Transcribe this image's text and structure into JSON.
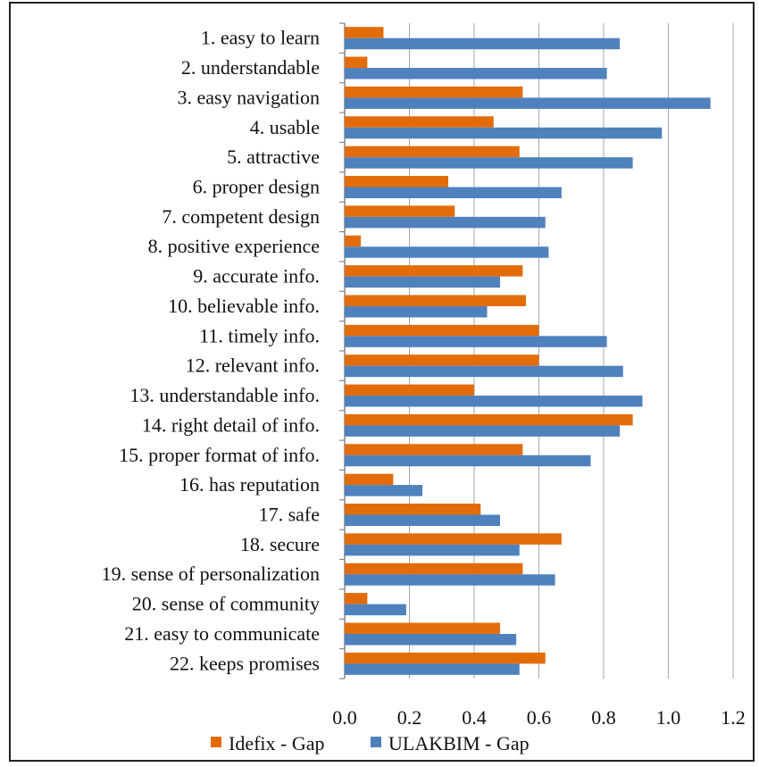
{
  "chart_data": {
    "type": "bar",
    "orientation": "horizontal",
    "categories": [
      "1. easy to learn",
      "2. understandable",
      "3. easy navigation",
      "4. usable",
      "5. attractive",
      "6. proper design",
      "7. competent design",
      "8. positive experience",
      "9. accurate info.",
      "10. believable info.",
      "11. timely info.",
      "12. relevant info.",
      "13. understandable info.",
      "14. right detail of info.",
      "15. proper format of info.",
      "16. has reputation",
      "17. safe",
      "18. secure",
      "19. sense of personalization",
      "20. sense of community",
      "21. easy to communicate",
      "22. keeps promises"
    ],
    "series": [
      {
        "name": "Idefix - Gap",
        "color": "#E36C0A",
        "values": [
          0.12,
          0.07,
          0.55,
          0.46,
          0.54,
          0.32,
          0.34,
          0.05,
          0.55,
          0.56,
          0.6,
          0.6,
          0.4,
          0.89,
          0.55,
          0.15,
          0.42,
          0.67,
          0.55,
          0.07,
          0.48,
          0.62
        ]
      },
      {
        "name": "ULAKBIM - Gap",
        "color": "#4F81BD",
        "values": [
          0.85,
          0.81,
          1.13,
          0.98,
          0.89,
          0.67,
          0.62,
          0.63,
          0.48,
          0.44,
          0.81,
          0.86,
          0.92,
          0.85,
          0.76,
          0.24,
          0.48,
          0.54,
          0.65,
          0.19,
          0.53,
          0.54
        ]
      }
    ],
    "xlim": [
      0,
      1.2
    ],
    "xticks": [
      "0.0",
      "0.2",
      "0.4",
      "0.6",
      "0.8",
      "1.0",
      "1.2"
    ],
    "grid": true,
    "legend_position": "bottom"
  }
}
